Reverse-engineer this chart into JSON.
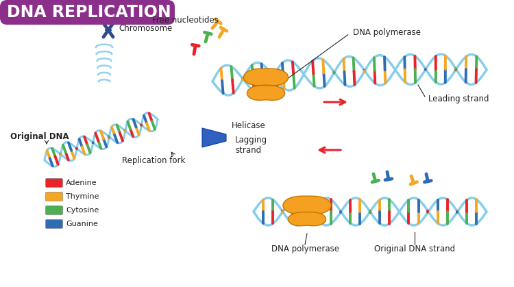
{
  "title": "DNA REPLICATION",
  "title_bg_color": "#8B2F8B",
  "title_text_color": "#FFFFFF",
  "bg_color": "#FFFFFF",
  "legend_items": [
    {
      "label": "Adenine",
      "color": "#E8232A"
    },
    {
      "label": "Thymine",
      "color": "#F5A623"
    },
    {
      "label": "Cytosine",
      "color": "#4CAF50"
    },
    {
      "label": "Guanine",
      "color": "#2E6DB4"
    }
  ],
  "labels": {
    "chromosome": "Chromosome",
    "free_nucleotides": "Free nucleotides",
    "dna_polymerase_top": "DNA polymerase",
    "leading_strand": "Leading strand",
    "helicase": "Helicase",
    "lagging_strand": "Lagging\nstrand",
    "replication_fork": "Replication fork",
    "original_dna": "Original DNA",
    "dna_polymerase_bottom": "DNA polymerase",
    "original_dna_strand": "Original DNA strand"
  },
  "colors": {
    "adenine": "#E8232A",
    "thymine": "#F5A623",
    "cytosine": "#4CAF50",
    "guanine": "#2E6DB4",
    "backbone": "#87CEEB",
    "polymerase": "#F5A623",
    "helicase": "#4169E1",
    "chromosome_dark": "#2E4A8B",
    "label_color": "#222222"
  }
}
